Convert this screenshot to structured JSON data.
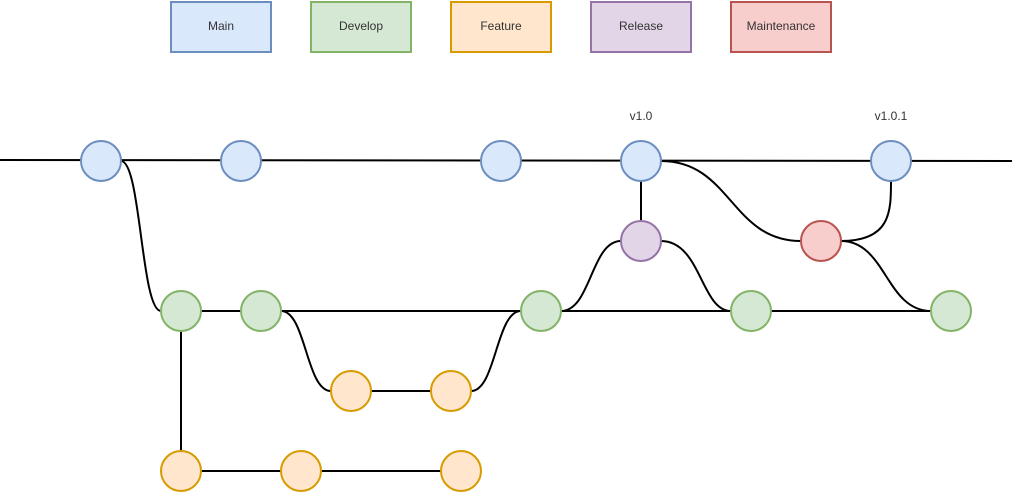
{
  "legend": [
    {
      "label": "Main",
      "branch": "main",
      "fill": "#dae8fc",
      "stroke": "#6c8ebf"
    },
    {
      "label": "Develop",
      "branch": "develop",
      "fill": "#d5e8d4",
      "stroke": "#82b366"
    },
    {
      "label": "Feature",
      "branch": "feature",
      "fill": "#ffe6cc",
      "stroke": "#d79b00"
    },
    {
      "label": "Release",
      "branch": "release",
      "fill": "#e1d5e7",
      "stroke": "#9673a6"
    },
    {
      "label": "Maintenance",
      "branch": "maintenance",
      "fill": "#f8cecc",
      "stroke": "#b85450"
    }
  ],
  "tags": {
    "v1": "v1.0",
    "v101": "v1.0.1"
  }
}
